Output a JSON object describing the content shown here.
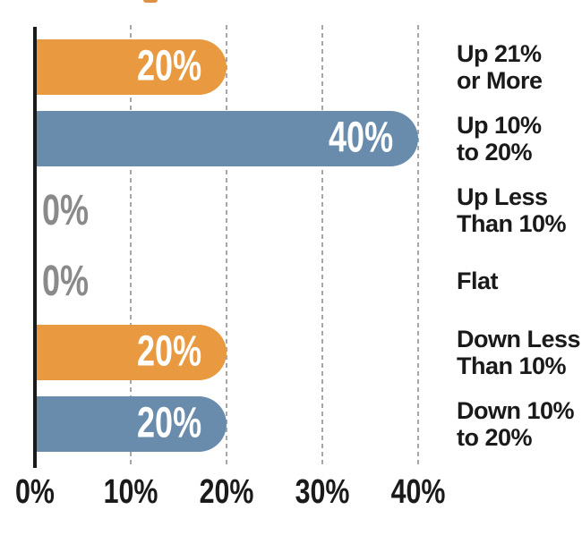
{
  "decor": {
    "cropped_title_fragment_color": "#DD9145"
  },
  "chart_data": {
    "type": "bar",
    "orientation": "horizontal",
    "title": "",
    "categories": [
      [
        "Up 21%",
        "or More"
      ],
      [
        "Up 10%",
        "to 20%"
      ],
      [
        "Up Less",
        "Than 10%"
      ],
      [
        "Flat"
      ],
      [
        "Down Less",
        "Than 10%"
      ],
      [
        "Down 10%",
        "to 20%"
      ]
    ],
    "row_ids": [
      "up-21-or-more",
      "up-10-to-20",
      "up-less-than-10",
      "flat",
      "down-less-than-10",
      "down-10-to-20"
    ],
    "values": [
      20,
      40,
      0,
      0,
      20,
      20
    ],
    "value_labels": [
      "20%",
      "40%",
      "0%",
      "0%",
      "20%",
      "20%"
    ],
    "bar_colors": [
      "#E9993F",
      "#6A8CAC",
      null,
      null,
      "#E9993F",
      "#6A8CAC"
    ],
    "xlabel": "",
    "ylabel": "",
    "xlim": [
      0,
      45
    ],
    "x_ticks": [
      {
        "label": "0%",
        "value": 0
      },
      {
        "label": "10%",
        "value": 10
      },
      {
        "label": "20%",
        "value": 20
      },
      {
        "label": "30%",
        "value": 30
      },
      {
        "label": "40%",
        "value": 40
      }
    ],
    "grid": "vertical dashed gridlines at 10%, 20%, 30%, 40%",
    "legend": "none",
    "colors": {
      "orange_bar": "#E9993F",
      "blue_bar": "#6A8CAC",
      "bar_value_text": "#FFFFFF",
      "zero_value_text": "#8A8A8A",
      "category_text": "#1A1A1A",
      "tick_text": "#1A1A1A",
      "axis_line": "#1A1A1A",
      "gridline": "#A6A6A6",
      "background": "#FFFFFF"
    }
  }
}
